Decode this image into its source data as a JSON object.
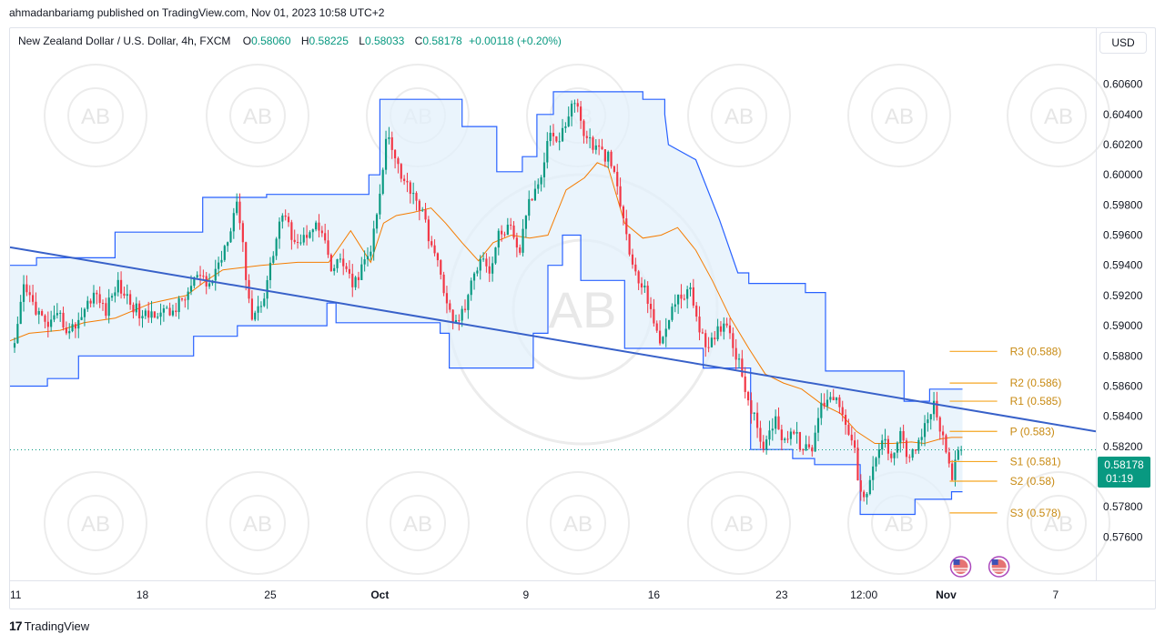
{
  "header": {
    "text": "ahmadanbariamg published on TradingView.com, Nov 01, 2023 10:58 UTC+2"
  },
  "legend": {
    "symbol": "New Zealand Dollar / U.S. Dollar, 4h, FXCM",
    "o_label": "O",
    "o": "0.58060",
    "h_label": "H",
    "h": "0.58225",
    "l_label": "L",
    "l": "0.58033",
    "c_label": "C",
    "c": "0.58178",
    "change": "+0.00118 (+0.20%)"
  },
  "currency_button": "USD",
  "price_tag": {
    "price": "0.58178",
    "countdown": "01:19"
  },
  "footer": {
    "logo": "17",
    "brand": "TradingView"
  },
  "watermark": {
    "text": "AB",
    "arc_text": "ARABIAN BUSINESS ACADEMY"
  },
  "colors": {
    "up": "#089981",
    "down": "#f23645",
    "channel": "#2962ff",
    "channel_fill": "#e3f0fb",
    "basis": "#f57c00",
    "trendline": "#3861c9",
    "pivot": "#f5a623",
    "pivot_text": "#c88a12"
  },
  "chart_data": {
    "type": "candlestick",
    "instrument": "New Zealand Dollar / U.S. Dollar",
    "timeframe": "4h",
    "ylim": [
      0.575,
      0.607
    ],
    "y_ticks": [
      "0.60600",
      "0.60400",
      "0.60200",
      "0.60000",
      "0.59800",
      "0.59600",
      "0.59400",
      "0.59200",
      "0.59000",
      "0.58800",
      "0.58600",
      "0.58400",
      "0.58200",
      "0.58000",
      "0.57800",
      "0.57600"
    ],
    "x_ticks": [
      {
        "label": "11",
        "day": 0
      },
      {
        "label": "18",
        "day": 7
      },
      {
        "label": "25",
        "day": 14
      },
      {
        "label": "Oct",
        "day": 20
      },
      {
        "label": "9",
        "day": 28
      },
      {
        "label": "16",
        "day": 35
      },
      {
        "label": "23",
        "day": 42
      },
      {
        "label": "12:00",
        "day": 46.5
      },
      {
        "label": "Nov",
        "day": 51
      },
      {
        "label": "7",
        "day": 57
      }
    ],
    "x_range_days": [
      -0.25,
      59.2
    ],
    "close_path": [
      [
        0,
        0.5885
      ],
      [
        0.5,
        0.5925
      ],
      [
        1,
        0.5915
      ],
      [
        1.7,
        0.59
      ],
      [
        2.5,
        0.5905
      ],
      [
        3,
        0.5895
      ],
      [
        3.7,
        0.5908
      ],
      [
        4.3,
        0.5922
      ],
      [
        5,
        0.591
      ],
      [
        5.6,
        0.5928
      ],
      [
        6.2,
        0.5918
      ],
      [
        7,
        0.5905
      ],
      [
        7.8,
        0.591
      ],
      [
        8.5,
        0.5908
      ],
      [
        9.3,
        0.5918
      ],
      [
        10,
        0.5933
      ],
      [
        10.6,
        0.5925
      ],
      [
        11.3,
        0.5945
      ],
      [
        11.8,
        0.5965
      ],
      [
        12.2,
        0.5985
      ],
      [
        12.6,
        0.594
      ],
      [
        13,
        0.5905
      ],
      [
        13.6,
        0.5918
      ],
      [
        14.2,
        0.595
      ],
      [
        14.6,
        0.5975
      ],
      [
        15.2,
        0.596
      ],
      [
        15.7,
        0.5955
      ],
      [
        16.3,
        0.5968
      ],
      [
        16.9,
        0.596
      ],
      [
        17.3,
        0.5935
      ],
      [
        17.9,
        0.5945
      ],
      [
        18.5,
        0.5925
      ],
      [
        19,
        0.5938
      ],
      [
        19.5,
        0.595
      ],
      [
        20,
        0.5985
      ],
      [
        20.4,
        0.603
      ],
      [
        20.8,
        0.6015
      ],
      [
        21.3,
        0.5995
      ],
      [
        21.8,
        0.599
      ],
      [
        22.3,
        0.5975
      ],
      [
        22.8,
        0.5955
      ],
      [
        23.4,
        0.593
      ],
      [
        24,
        0.59
      ],
      [
        24.6,
        0.591
      ],
      [
        25.2,
        0.5935
      ],
      [
        25.6,
        0.595
      ],
      [
        26,
        0.5935
      ],
      [
        26.5,
        0.596
      ],
      [
        27.1,
        0.5965
      ],
      [
        27.6,
        0.5945
      ],
      [
        28,
        0.5975
      ],
      [
        28.5,
        0.599
      ],
      [
        28.9,
        0.6005
      ],
      [
        29.3,
        0.603
      ],
      [
        29.8,
        0.602
      ],
      [
        30.3,
        0.604
      ],
      [
        30.7,
        0.605
      ],
      [
        31.1,
        0.603
      ],
      [
        31.6,
        0.602
      ],
      [
        32.1,
        0.6015
      ],
      [
        32.6,
        0.601
      ],
      [
        33,
        0.599
      ],
      [
        33.5,
        0.596
      ],
      [
        33.9,
        0.5935
      ],
      [
        34.4,
        0.5925
      ],
      [
        34.8,
        0.5915
      ],
      [
        35.3,
        0.5885
      ],
      [
        35.9,
        0.591
      ],
      [
        36.4,
        0.5918
      ],
      [
        36.9,
        0.5925
      ],
      [
        37.4,
        0.5905
      ],
      [
        37.9,
        0.588
      ],
      [
        38.4,
        0.5895
      ],
      [
        38.9,
        0.5905
      ],
      [
        39.3,
        0.589
      ],
      [
        39.8,
        0.587
      ],
      [
        40.2,
        0.585
      ],
      [
        40.7,
        0.583
      ],
      [
        41.1,
        0.5818
      ],
      [
        41.6,
        0.584
      ],
      [
        42.1,
        0.5825
      ],
      [
        42.6,
        0.583
      ],
      [
        43.1,
        0.582
      ],
      [
        43.6,
        0.5815
      ],
      [
        44.1,
        0.5845
      ],
      [
        44.6,
        0.5855
      ],
      [
        45.1,
        0.585
      ],
      [
        45.6,
        0.5835
      ],
      [
        46,
        0.5815
      ],
      [
        46.3,
        0.579
      ],
      [
        46.6,
        0.5782
      ],
      [
        47,
        0.5805
      ],
      [
        47.5,
        0.5825
      ],
      [
        48,
        0.5815
      ],
      [
        48.5,
        0.583
      ],
      [
        49,
        0.581
      ],
      [
        49.5,
        0.5825
      ],
      [
        50,
        0.5835
      ],
      [
        50.3,
        0.585
      ],
      [
        50.6,
        0.5835
      ],
      [
        51,
        0.5815
      ],
      [
        51.3,
        0.58
      ],
      [
        51.6,
        0.5812
      ],
      [
        51.9,
        0.58178
      ]
    ],
    "channel_upper": [
      [
        -0.25,
        0.594
      ],
      [
        1.2,
        0.594
      ],
      [
        1.2,
        0.5945
      ],
      [
        5.5,
        0.5945
      ],
      [
        5.5,
        0.5962
      ],
      [
        10.3,
        0.5962
      ],
      [
        10.3,
        0.5985
      ],
      [
        13.8,
        0.5985
      ],
      [
        13.8,
        0.5987
      ],
      [
        19.4,
        0.5987
      ],
      [
        19.4,
        0.6
      ],
      [
        20,
        0.6
      ],
      [
        20,
        0.605
      ],
      [
        24.5,
        0.605
      ],
      [
        24.5,
        0.6032
      ],
      [
        26.4,
        0.6032
      ],
      [
        26.4,
        0.6002
      ],
      [
        27.8,
        0.6002
      ],
      [
        27.8,
        0.6012
      ],
      [
        28.6,
        0.6012
      ],
      [
        28.6,
        0.604
      ],
      [
        29.5,
        0.604
      ],
      [
        29.5,
        0.6055
      ],
      [
        34.4,
        0.6055
      ],
      [
        34.4,
        0.605
      ],
      [
        35.6,
        0.605
      ],
      [
        35.6,
        0.604
      ],
      [
        35.8,
        0.602
      ],
      [
        37.3,
        0.601
      ],
      [
        38.6,
        0.597
      ],
      [
        39.6,
        0.5935
      ],
      [
        40.2,
        0.5935
      ],
      [
        40.2,
        0.5928
      ],
      [
        43.3,
        0.5928
      ],
      [
        43.3,
        0.5922
      ],
      [
        44.4,
        0.5922
      ],
      [
        44.4,
        0.587
      ],
      [
        46.5,
        0.587
      ],
      [
        46.5,
        0.587
      ],
      [
        48.7,
        0.587
      ],
      [
        48.7,
        0.585
      ],
      [
        50.1,
        0.585
      ],
      [
        50.1,
        0.5858
      ],
      [
        51.9,
        0.5858
      ]
    ],
    "channel_lower": [
      [
        -0.25,
        0.586
      ],
      [
        1.8,
        0.586
      ],
      [
        1.8,
        0.5865
      ],
      [
        3.5,
        0.5865
      ],
      [
        3.5,
        0.588
      ],
      [
        9.8,
        0.588
      ],
      [
        9.8,
        0.5893
      ],
      [
        12.2,
        0.5893
      ],
      [
        12.2,
        0.59
      ],
      [
        17.1,
        0.59
      ],
      [
        17.1,
        0.5915
      ],
      [
        17.6,
        0.5915
      ],
      [
        17.6,
        0.5902
      ],
      [
        23.3,
        0.5902
      ],
      [
        23.3,
        0.5895
      ],
      [
        23.8,
        0.5895
      ],
      [
        23.8,
        0.5872
      ],
      [
        28.4,
        0.5872
      ],
      [
        28.4,
        0.5895
      ],
      [
        29.2,
        0.5895
      ],
      [
        29.2,
        0.594
      ],
      [
        30,
        0.594
      ],
      [
        30,
        0.596
      ],
      [
        31,
        0.596
      ],
      [
        31,
        0.593
      ],
      [
        33.4,
        0.593
      ],
      [
        33.4,
        0.5885
      ],
      [
        37.7,
        0.5885
      ],
      [
        37.7,
        0.5872
      ],
      [
        40.3,
        0.5872
      ],
      [
        40.3,
        0.5818
      ],
      [
        42.6,
        0.5818
      ],
      [
        42.6,
        0.5812
      ],
      [
        43.8,
        0.5812
      ],
      [
        43.8,
        0.5808
      ],
      [
        46.3,
        0.5808
      ],
      [
        46.3,
        0.5775
      ],
      [
        49.3,
        0.5775
      ],
      [
        49.3,
        0.5785
      ],
      [
        51.3,
        0.5785
      ],
      [
        51.3,
        0.579
      ],
      [
        51.9,
        0.579
      ]
    ],
    "basis_line": [
      [
        -0.25,
        0.589
      ],
      [
        0.8,
        0.5895
      ],
      [
        2.5,
        0.5897
      ],
      [
        3.8,
        0.5902
      ],
      [
        5.5,
        0.5905
      ],
      [
        7.5,
        0.5915
      ],
      [
        9.4,
        0.592
      ],
      [
        10.5,
        0.593
      ],
      [
        11.4,
        0.5937
      ],
      [
        13.5,
        0.594
      ],
      [
        15.5,
        0.5942
      ],
      [
        17.2,
        0.5942
      ],
      [
        18.4,
        0.5963
      ],
      [
        19.5,
        0.5942
      ],
      [
        20.2,
        0.5968
      ],
      [
        20.9,
        0.5973
      ],
      [
        21.8,
        0.5975
      ],
      [
        22.8,
        0.5978
      ],
      [
        23.6,
        0.5968
      ],
      [
        24.5,
        0.5955
      ],
      [
        25.4,
        0.5943
      ],
      [
        26.2,
        0.5955
      ],
      [
        27.2,
        0.596
      ],
      [
        28.2,
        0.5958
      ],
      [
        29.2,
        0.596
      ],
      [
        30.2,
        0.599
      ],
      [
        31.2,
        0.5998
      ],
      [
        31.9,
        0.6008
      ],
      [
        32.5,
        0.6005
      ],
      [
        33.4,
        0.5968
      ],
      [
        34.4,
        0.5958
      ],
      [
        35.4,
        0.596
      ],
      [
        36.3,
        0.5965
      ],
      [
        37.3,
        0.595
      ],
      [
        38.2,
        0.593
      ],
      [
        39.2,
        0.5905
      ],
      [
        40.2,
        0.5885
      ],
      [
        41.1,
        0.5868
      ],
      [
        42.1,
        0.5862
      ],
      [
        43.1,
        0.5858
      ],
      [
        44.2,
        0.5848
      ],
      [
        45.2,
        0.5842
      ],
      [
        46.1,
        0.583
      ],
      [
        47.1,
        0.5822
      ],
      [
        48.1,
        0.5822
      ],
      [
        49.1,
        0.5823
      ],
      [
        49.8,
        0.5822
      ],
      [
        50.7,
        0.5825
      ],
      [
        51.3,
        0.5826
      ],
      [
        51.9,
        0.5826
      ]
    ],
    "trendline": {
      "p1": [
        -0.25,
        0.5952
      ],
      "p2": [
        59.2,
        0.583
      ]
    },
    "pivots": [
      {
        "label": "R3 (0.588)",
        "value": 0.5883
      },
      {
        "label": "R2 (0.586)",
        "value": 0.5862
      },
      {
        "label": "R1 (0.585)",
        "value": 0.585
      },
      {
        "label": "P (0.583)",
        "value": 0.583
      },
      {
        "label": "S1 (0.581)",
        "value": 0.581
      },
      {
        "label": "S2 (0.58)",
        "value": 0.5797
      },
      {
        "label": "S3 (0.578)",
        "value": 0.5776
      }
    ],
    "pivot_x_range_days": [
      51.2,
      53.8
    ],
    "last_price": 0.58178,
    "event_icons_days": [
      51.8,
      53.9
    ]
  }
}
